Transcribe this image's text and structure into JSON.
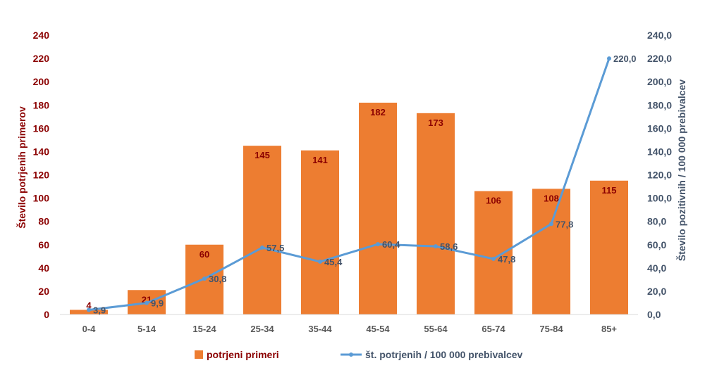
{
  "chart_data": {
    "type": "bar+line",
    "categories": [
      "0-4",
      "5-14",
      "15-24",
      "25-34",
      "35-44",
      "45-54",
      "55-64",
      "65-74",
      "75-84",
      "85+"
    ],
    "bar_series": {
      "name": "potrjeni primeri",
      "values": [
        4,
        21,
        60,
        145,
        141,
        182,
        173,
        106,
        108,
        115
      ],
      "labels": [
        "4",
        "21",
        "60",
        "145",
        "141",
        "182",
        "173",
        "106",
        "108",
        "115"
      ],
      "color": "#ed7d31"
    },
    "line_series": {
      "name": "št. potrjenih / 100 000 prebivalcev",
      "values": [
        3.9,
        9.9,
        30.8,
        57.5,
        45.4,
        60.4,
        58.6,
        47.8,
        77.8,
        220.0
      ],
      "labels": [
        "3,9",
        "9,9",
        "30,8",
        "57,5",
        "45,4",
        "60,4",
        "58,6",
        "47,8",
        "77,8",
        "220,0"
      ],
      "color": "#5b9bd5"
    },
    "ylabel_left": "Število potrjenih primerov",
    "ylabel_right": "Število pozitivnih / 100 000 prebivalcev",
    "ylim_left": [
      0,
      240
    ],
    "ylim_right": [
      0,
      240
    ],
    "yticks_left": [
      "0",
      "20",
      "40",
      "60",
      "80",
      "100",
      "120",
      "140",
      "160",
      "180",
      "200",
      "220",
      "240"
    ],
    "yticks_right": [
      "0,0",
      "20,0",
      "40,0",
      "60,0",
      "80,0",
      "100,0",
      "120,0",
      "140,0",
      "160,0",
      "180,0",
      "200,0",
      "220,0",
      "240,0"
    ],
    "grid": false,
    "legend_position": "bottom",
    "colors": {
      "left_axis": "#8b0000",
      "right_axis": "#44546a",
      "x_axis": "#595959"
    }
  }
}
